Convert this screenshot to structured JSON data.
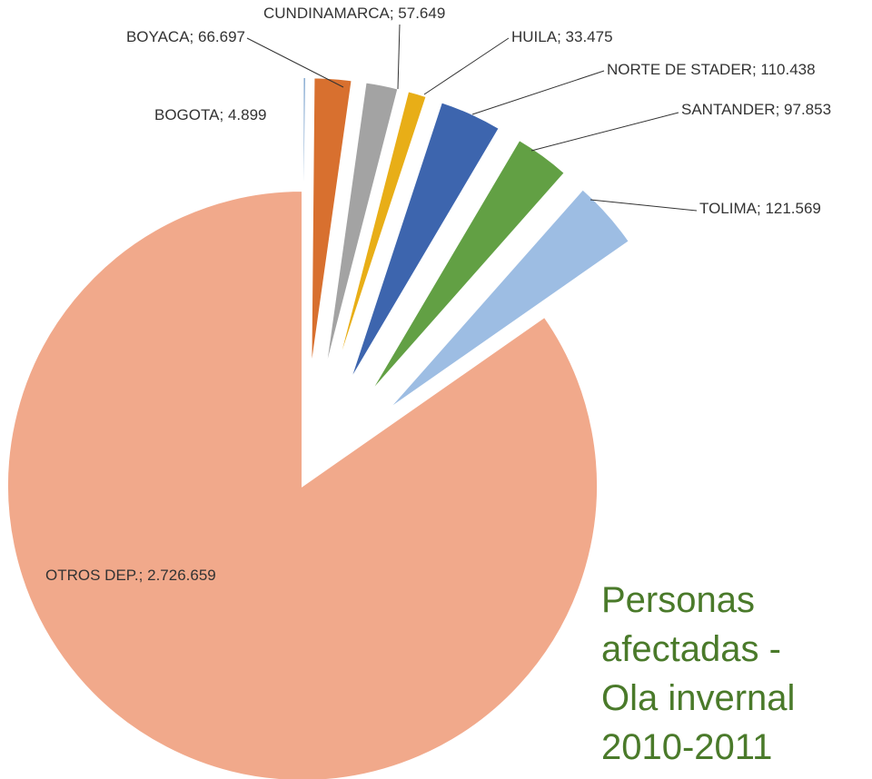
{
  "chart_data": {
    "type": "pie",
    "title": "Personas afectadas - Ola invernal 2010-2011",
    "separator": "; ",
    "categories": [
      "BOGOTA",
      "BOYACA",
      "CUNDINAMARCA",
      "HUILA",
      "NORTE DE STADER",
      "SANTANDER",
      "TOLIMA",
      "OTROS DEP."
    ],
    "values": [
      4899,
      66697,
      57649,
      33475,
      110438,
      97853,
      121569,
      2726659
    ],
    "value_labels": [
      "4.899",
      "66.697",
      "57.649",
      "33.475",
      "110.438",
      "97.853",
      "121.569",
      "2.726.659"
    ],
    "colors": [
      "#5a8cc0",
      "#d8702f",
      "#a3a3a3",
      "#e8ae17",
      "#3d65ae",
      "#62a044",
      "#9dbde3",
      "#f1a98b"
    ]
  }
}
